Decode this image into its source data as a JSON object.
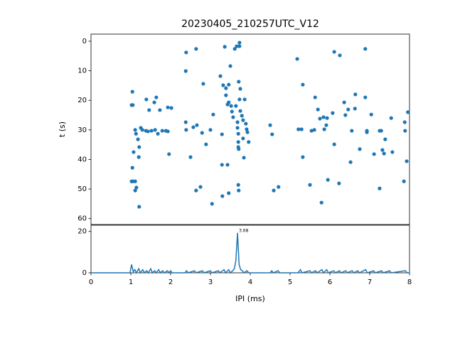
{
  "chart_data": [
    {
      "type": "scatter",
      "title": "20230405_210257UTC_V12",
      "y_label": "t (s)",
      "color": "#1f77b4",
      "xlim": [
        0,
        8
      ],
      "ylim": [
        62,
        -2.4
      ],
      "yticks": [
        0,
        10,
        20,
        30,
        40,
        50,
        60
      ],
      "x": [
        1.04,
        1.02,
        1.05,
        1.11,
        1.13,
        1.18,
        1.21,
        1.2,
        1.07,
        1.04,
        1.05,
        1.11,
        1.11,
        1.14,
        1.21,
        1.02,
        1.25,
        1.29,
        1.38,
        1.43,
        1.39,
        1.46,
        1.59,
        1.64,
        1.52,
        1.61,
        1.68,
        1.73,
        1.79,
        1.88,
        1.93,
        1.93,
        2.02,
        1.96,
        2.38,
        2.39,
        2.64,
        2.38,
        2.39,
        2.57,
        2.66,
        2.79,
        2.82,
        2.89,
        2.5,
        2.64,
        2.75,
        3.0,
        3.04,
        3.07,
        3.29,
        3.25,
        3.32,
        3.36,
        3.39,
        3.39,
        3.43,
        3.43,
        3.29,
        3.3,
        3.46,
        3.46,
        3.5,
        3.52,
        3.54,
        3.57,
        3.61,
        3.64,
        3.66,
        3.68,
        3.68,
        3.7,
        3.7,
        3.7,
        3.71,
        3.7,
        3.71,
        3.73,
        3.73,
        3.71,
        3.75,
        3.73,
        3.75,
        3.79,
        3.82,
        3.86,
        3.89,
        3.91,
        3.93,
        3.96,
        3.82,
        3.84,
        3.46,
        4.5,
        4.55,
        4.59,
        4.71,
        5.18,
        5.21,
        5.29,
        5.32,
        5.32,
        5.5,
        5.54,
        5.61,
        5.63,
        5.7,
        5.75,
        5.79,
        5.84,
        5.86,
        5.91,
        5.93,
        5.95,
        6.07,
        6.11,
        6.11,
        6.25,
        6.23,
        6.36,
        6.39,
        6.46,
        6.55,
        6.52,
        6.63,
        6.64,
        6.75,
        6.89,
        6.89,
        6.93,
        6.93,
        7.04,
        7.11,
        7.25,
        7.29,
        7.25,
        7.32,
        7.36,
        7.39,
        7.54,
        7.57,
        7.89,
        7.88,
        7.93,
        7.86,
        7.96
      ],
      "values": [
        17.1,
        21.6,
        21.6,
        30.0,
        31.3,
        33.2,
        35.8,
        39.2,
        37.5,
        42.8,
        47.4,
        47.4,
        50.5,
        49.5,
        56.0,
        47.4,
        29.3,
        30.0,
        30.3,
        30.5,
        19.7,
        23.3,
        20.7,
        19.0,
        30.3,
        30.0,
        31.3,
        23.3,
        30.3,
        30.3,
        30.5,
        22.4,
        22.6,
        38.2,
        10.1,
        3.8,
        2.6,
        27.4,
        30.0,
        29.1,
        28.4,
        31.0,
        14.4,
        34.9,
        39.2,
        50.5,
        49.3,
        30.0,
        55.0,
        24.8,
        31.5,
        11.8,
        14.9,
        1.9,
        15.9,
        18.3,
        21.4,
        41.8,
        41.8,
        52.4,
        14.7,
        20.7,
        8.4,
        21.9,
        23.8,
        25.7,
        2.6,
        21.9,
        1.7,
        27.4,
        29.3,
        31.3,
        34.1,
        35.8,
        36.5,
        48.6,
        50.5,
        0.5,
        1.7,
        13.7,
        16.1,
        19.7,
        23.6,
        25.2,
        26.7,
        19.7,
        27.9,
        29.8,
        30.8,
        34.1,
        32.9,
        39.4,
        51.4,
        28.4,
        31.5,
        50.5,
        49.3,
        6.0,
        29.8,
        29.8,
        14.7,
        39.2,
        48.6,
        30.3,
        30.0,
        19.0,
        23.1,
        26.2,
        54.6,
        25.7,
        29.8,
        28.4,
        26.0,
        46.9,
        24.3,
        3.6,
        34.9,
        4.8,
        48.1,
        20.7,
        25.0,
        23.1,
        30.3,
        40.9,
        22.8,
        18.0,
        36.5,
        2.6,
        19.0,
        30.3,
        30.8,
        24.8,
        38.2,
        30.3,
        30.3,
        49.8,
        36.8,
        38.0,
        33.2,
        26.0,
        37.5,
        30.3,
        27.4,
        40.6,
        47.4,
        24.0
      ]
    },
    {
      "type": "line",
      "x_label": "IPI (ms)",
      "color": "#1f77b4",
      "xlim": [
        0,
        8
      ],
      "xticks": [
        0,
        1,
        2,
        3,
        4,
        5,
        6,
        7,
        8
      ],
      "ylim": [
        0,
        23
      ],
      "yticks": [
        0,
        20
      ],
      "x": [
        0,
        0.98,
        1.02,
        1.06,
        1.1,
        1.14,
        1.2,
        1.24,
        1.3,
        1.34,
        1.4,
        1.44,
        1.5,
        1.54,
        1.6,
        1.64,
        1.7,
        1.74,
        1.8,
        1.84,
        1.92,
        1.96,
        2.0,
        2.04,
        2.36,
        2.4,
        2.44,
        2.6,
        2.64,
        2.8,
        2.84,
        3.0,
        3.04,
        3.2,
        3.24,
        3.34,
        3.38,
        3.46,
        3.5,
        3.56,
        3.6,
        3.64,
        3.68,
        3.72,
        3.76,
        3.8,
        3.84,
        3.92,
        3.96,
        4.5,
        4.54,
        4.58,
        4.7,
        4.74,
        5.2,
        5.26,
        5.3,
        5.5,
        5.54,
        5.64,
        5.68,
        5.8,
        5.84,
        5.92,
        5.96,
        6.1,
        6.14,
        6.24,
        6.28,
        6.4,
        6.44,
        6.56,
        6.6,
        6.7,
        6.74,
        6.9,
        6.94,
        7.1,
        7.14,
        7.3,
        7.34,
        7.5,
        7.54,
        7.9,
        7.94,
        8
      ],
      "values": [
        0,
        0,
        4,
        0.5,
        1.5,
        0,
        2,
        0,
        1.5,
        0,
        1,
        0,
        2,
        0,
        1,
        0,
        1.5,
        0,
        1,
        0,
        1,
        0,
        1,
        0,
        0,
        1,
        0,
        1,
        0,
        1,
        0,
        1,
        0,
        1,
        0,
        1.5,
        0,
        1.5,
        0,
        1,
        2,
        6,
        19.3,
        4,
        1.5,
        1,
        0,
        1,
        0,
        0,
        1,
        0,
        1,
        0,
        0,
        1.5,
        0,
        1,
        0,
        1,
        0,
        1.5,
        0,
        1.5,
        0,
        1,
        0,
        1,
        0,
        1,
        0,
        1,
        0,
        1,
        0,
        1.5,
        0,
        1,
        0,
        1,
        0,
        1,
        0,
        1,
        0,
        0
      ],
      "annotations": [
        {
          "text": "3.68",
          "x": 3.68,
          "y": 19.3
        }
      ]
    }
  ]
}
